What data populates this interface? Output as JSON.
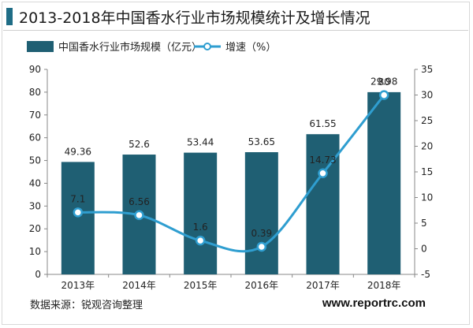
{
  "page": {
    "title": "2013-2018年中国香水行业市场规模统计及增长情况",
    "source": "数据来源：锐观咨询整理",
    "website": "www.reportrc.com"
  },
  "colors": {
    "bar": "#1f5f73",
    "line": "#2f9ed0",
    "marker_fill": "#ffffff",
    "title_mark": "#1f6d86"
  },
  "chart_data": {
    "type": "bar",
    "categories": [
      "2013年",
      "2014年",
      "2015年",
      "2016年",
      "2017年",
      "2018年"
    ],
    "series": [
      {
        "name": "中国香水行业市场规模（亿元）",
        "type": "bar",
        "axis": "left",
        "values": [
          49.36,
          52.6,
          53.44,
          53.65,
          61.55,
          80
        ],
        "labels": [
          "49.36",
          "52.6",
          "53.44",
          "53.65",
          "61.55",
          "80"
        ]
      },
      {
        "name": "增速（%）",
        "type": "line",
        "axis": "right",
        "values": [
          7.1,
          6.56,
          1.6,
          0.39,
          14.73,
          29.98
        ],
        "labels": [
          "7.1",
          "6.56",
          "1.6",
          "0.39",
          "14.73",
          "29.98"
        ]
      }
    ],
    "y_left": {
      "min": 0,
      "max": 90,
      "step": 10,
      "ticks": [
        "0",
        "10",
        "20",
        "30",
        "40",
        "50",
        "60",
        "70",
        "80",
        "90"
      ]
    },
    "y_right": {
      "min": -5,
      "max": 35,
      "step": 5,
      "ticks": [
        "-5",
        "0",
        "5",
        "10",
        "15",
        "20",
        "25",
        "30",
        "35"
      ]
    },
    "legend": "top-left",
    "grid": false
  }
}
